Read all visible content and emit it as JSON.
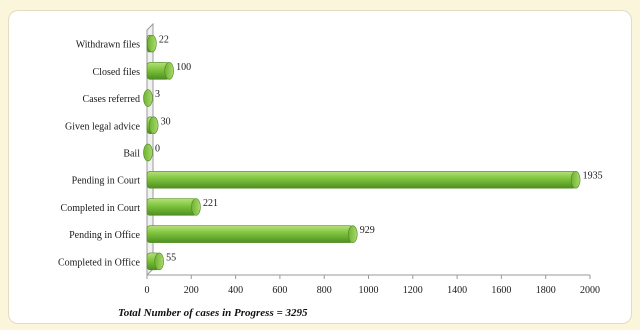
{
  "chart_data": {
    "type": "bar",
    "orientation": "horizontal",
    "categories": [
      "Completed in Office",
      "Pending in Office",
      "Completed in Court",
      "Pending in Court",
      "Bail",
      "Given legal advice",
      "Cases referred",
      "Closed files",
      "Withdrawn files"
    ],
    "values": [
      55,
      929,
      221,
      1935,
      0,
      30,
      3,
      100,
      22
    ],
    "xlabel": "Total Number of cases in Progress = 3295",
    "xlim": [
      0,
      2000
    ],
    "xticks": [
      0,
      200,
      400,
      600,
      800,
      1000,
      1200,
      1400,
      1600,
      1800,
      2000
    ],
    "grid": false,
    "bar_color": "#7cc33c"
  }
}
